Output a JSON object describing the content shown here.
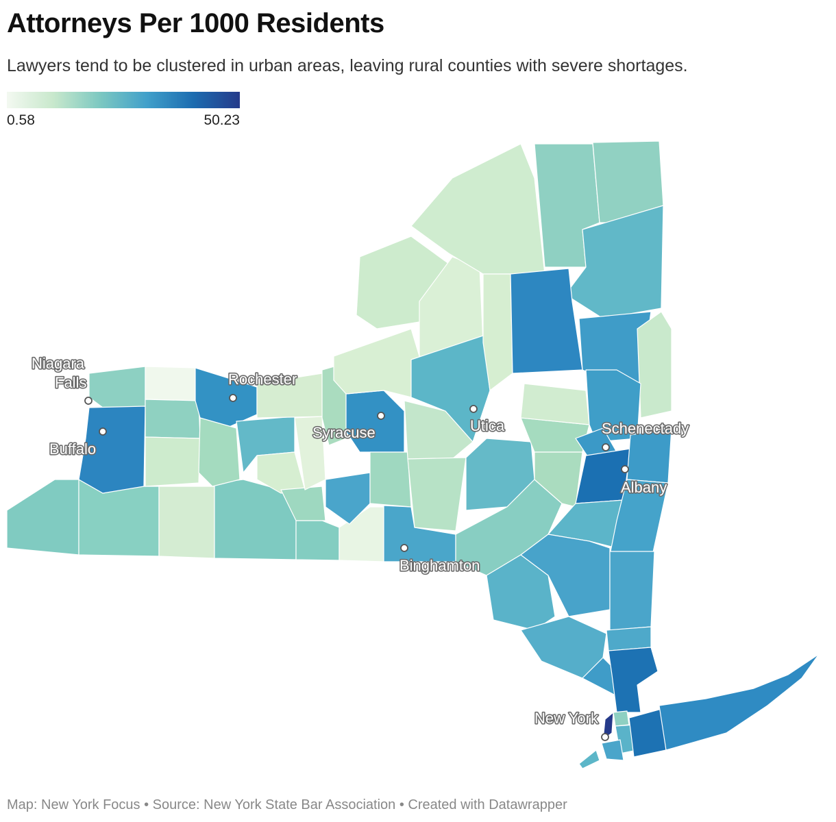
{
  "header": {
    "title": "Attorneys Per 1000 Residents",
    "subtitle": "Lawyers tend to be clustered in urban areas, leaving rural counties with severe shortages."
  },
  "legend": {
    "min": "0.58",
    "max": "50.23",
    "colors": [
      "#f3f9f1",
      "#c8e8cc",
      "#7cc8c1",
      "#41a0ca",
      "#1c6cb0",
      "#253a8a"
    ]
  },
  "cities": {
    "niagara_falls_1": "Niagara",
    "niagara_falls_2": "Falls",
    "buffalo": "Buffalo",
    "rochester": "Rochester",
    "syracuse": "Syracuse",
    "utica": "Utica",
    "schenectady": "Schenectady",
    "albany": "Albany",
    "binghamton": "Binghamton",
    "new_york": "New York"
  },
  "footer": {
    "credits": "Map: New York Focus • Source: New York State Bar Association • Created with Datawrapper"
  }
}
